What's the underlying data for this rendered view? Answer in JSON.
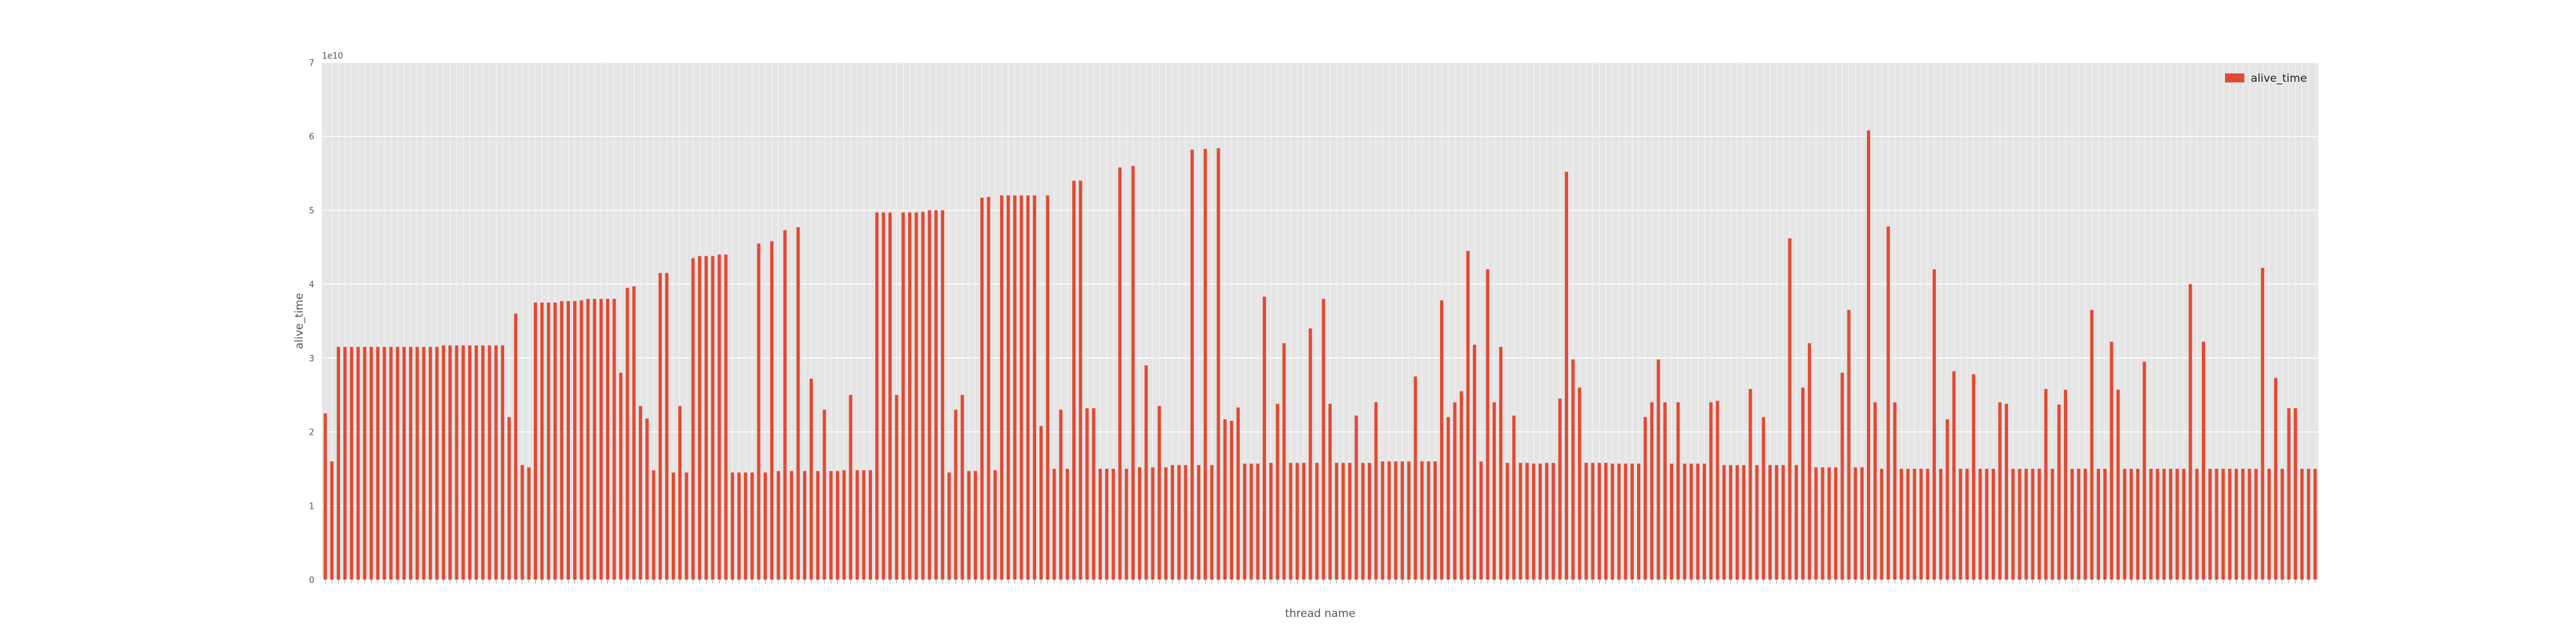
{
  "chart_data": {
    "type": "bar",
    "xlabel": "thread name",
    "ylabel": "alive_time",
    "y_offset_text": "1e10",
    "legend": {
      "label": "alive_time",
      "placement": "top-right"
    },
    "ylim": [
      0,
      7
    ],
    "yticks": [
      0,
      1,
      2,
      3,
      4,
      5,
      6,
      7
    ],
    "grid": true,
    "colors": {
      "bar": "#e24a33",
      "plot_bg": "#e5e5e5",
      "grid": "#ffffff",
      "axis_text": "#555555"
    },
    "unit_scale": 10000000000.0,
    "values": [
      2.25,
      1.6,
      3.15,
      3.15,
      3.15,
      3.15,
      3.15,
      3.15,
      3.15,
      3.15,
      3.15,
      3.15,
      3.15,
      3.15,
      3.15,
      3.15,
      3.15,
      3.15,
      3.17,
      3.17,
      3.17,
      3.17,
      3.17,
      3.17,
      3.17,
      3.17,
      3.17,
      3.17,
      2.2,
      3.6,
      1.55,
      1.52,
      3.75,
      3.75,
      3.75,
      3.75,
      3.77,
      3.77,
      3.77,
      3.78,
      3.8,
      3.8,
      3.8,
      3.8,
      3.8,
      2.8,
      3.95,
      3.97,
      2.35,
      2.18,
      1.48,
      4.15,
      4.15,
      1.45,
      2.35,
      1.45,
      4.35,
      4.38,
      4.38,
      4.38,
      4.4,
      4.4,
      1.45,
      1.45,
      1.45,
      1.45,
      4.55,
      1.45,
      4.58,
      1.47,
      4.73,
      1.47,
      4.77,
      1.47,
      2.72,
      1.47,
      2.3,
      1.47,
      1.47,
      1.48,
      2.5,
      1.48,
      1.48,
      1.48,
      4.97,
      4.97,
      4.97,
      2.5,
      4.97,
      4.97,
      4.97,
      4.98,
      5.0,
      5.0,
      5.0,
      1.45,
      2.3,
      2.5,
      1.47,
      1.47,
      5.17,
      5.18,
      1.48,
      5.2,
      5.2,
      5.2,
      5.2,
      5.2,
      5.2,
      2.08,
      5.2,
      1.5,
      2.3,
      1.5,
      5.4,
      5.4,
      2.32,
      2.32,
      1.5,
      1.5,
      1.5,
      5.58,
      1.5,
      5.6,
      1.52,
      2.9,
      1.52,
      2.35,
      1.52,
      1.55,
      1.55,
      1.55,
      5.82,
      1.55,
      5.83,
      1.55,
      5.84,
      2.17,
      2.15,
      2.33,
      1.57,
      1.57,
      1.57,
      3.83,
      1.58,
      2.38,
      3.2,
      1.58,
      1.58,
      1.58,
      3.4,
      1.58,
      3.8,
      2.38,
      1.58,
      1.58,
      1.58,
      2.22,
      1.58,
      1.58,
      2.4,
      1.6,
      1.6,
      1.6,
      1.6,
      1.6,
      2.75,
      1.6,
      1.6,
      1.6,
      3.78,
      2.2,
      2.4,
      2.55,
      4.45,
      3.18,
      1.6,
      4.2,
      2.4,
      3.15,
      1.58,
      2.22,
      1.58,
      1.58,
      1.57,
      1.57,
      1.58,
      1.58,
      2.45,
      5.52,
      2.98,
      2.6,
      1.58,
      1.58,
      1.58,
      1.58,
      1.57,
      1.57,
      1.57,
      1.57,
      1.57,
      2.2,
      2.4,
      2.98,
      2.4,
      1.57,
      2.4,
      1.57,
      1.57,
      1.57,
      1.57,
      2.4,
      2.42,
      1.55,
      1.55,
      1.55,
      1.55,
      2.58,
      1.55,
      2.2,
      1.55,
      1.55,
      1.55,
      4.62,
      1.55,
      2.6,
      3.2,
      1.52,
      1.52,
      1.52,
      1.52,
      2.8,
      3.65,
      1.52,
      1.52,
      6.08,
      2.4,
      1.5,
      4.78,
      2.4,
      1.5,
      1.5,
      1.5,
      1.5,
      1.5,
      4.2,
      1.5,
      2.17,
      2.82,
      1.5,
      1.5,
      2.78,
      1.5,
      1.5,
      1.5,
      2.4,
      2.38,
      1.5,
      1.5,
      1.5,
      1.5,
      1.5,
      2.58,
      1.5,
      2.37,
      2.57,
      1.5,
      1.5,
      1.5,
      3.65,
      1.5,
      1.5,
      3.22,
      2.57,
      1.5,
      1.5,
      1.5,
      2.95,
      1.5,
      1.5,
      1.5,
      1.5,
      1.5,
      1.5,
      4.0,
      1.5,
      3.22,
      1.5,
      1.5,
      1.5,
      1.5,
      1.5,
      1.5,
      1.5,
      1.5,
      4.22,
      1.5,
      2.73,
      1.5,
      2.32,
      2.32,
      1.5,
      1.5,
      1.5
    ]
  }
}
